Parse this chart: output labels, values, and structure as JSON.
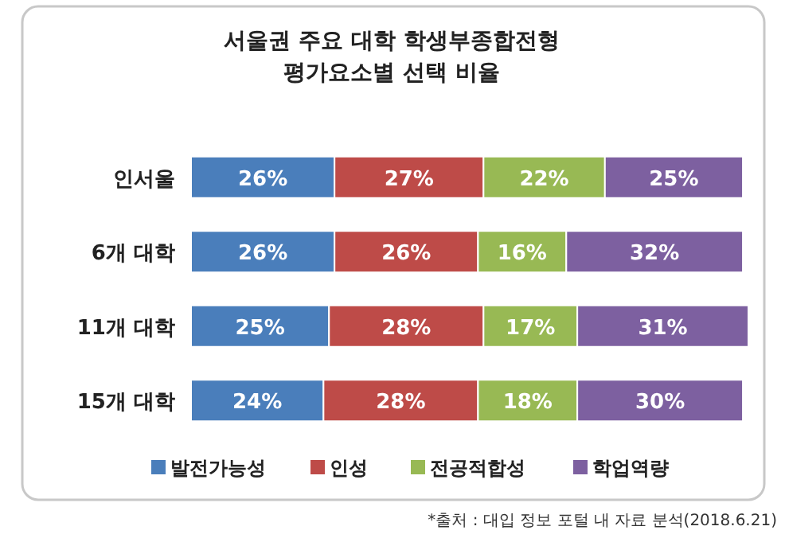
{
  "chart_data": {
    "type": "bar",
    "orientation": "horizontal",
    "stacked": true,
    "legend": "bottom",
    "title": "서울권 주요 대학 학생부종합전형 평가요소별 선택 비율",
    "categories": [
      "인서울",
      "6개 대학",
      "11개 대학",
      "15개 대학"
    ],
    "series": [
      {
        "name": "발전가능성",
        "color": "#4a7ebb",
        "values": [
          26,
          26,
          25,
          24
        ],
        "value_labels": [
          "26%",
          "26%",
          "25%",
          "24%"
        ]
      },
      {
        "name": "인성",
        "color": "#be4b48",
        "values": [
          27,
          26,
          28,
          28
        ],
        "value_labels": [
          "27%",
          "26%",
          "28%",
          "28%"
        ]
      },
      {
        "name": "전공적합성",
        "color": "#98b954",
        "values": [
          22,
          16,
          17,
          18
        ],
        "value_labels": [
          "22%",
          "16%",
          "17%",
          "18%"
        ]
      },
      {
        "name": "학업역량",
        "color": "#7d60a0",
        "values": [
          25,
          32,
          31,
          30
        ],
        "value_labels": [
          "25%",
          "32%",
          "31%",
          "30%"
        ]
      }
    ],
    "annotations": [
      "*출처 : 대입 정보 포털 내 자료 분석(2018.6.21)"
    ]
  }
}
